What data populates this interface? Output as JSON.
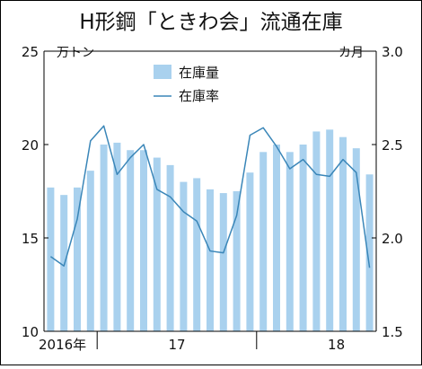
{
  "chart_data": {
    "type": "bar+line",
    "title": "H形鋼「ときわ会」流通在庫",
    "left_axis": {
      "unit": "万トン",
      "ylim": [
        10,
        25
      ],
      "ticks": [
        "10",
        "15",
        "20",
        "25"
      ]
    },
    "right_axis": {
      "unit": "カ月",
      "ylim": [
        1.5,
        3.0
      ],
      "ticks": [
        "1.5",
        "2.0",
        "2.5",
        "3.0"
      ]
    },
    "x_labels": [
      {
        "label": "2016年",
        "index": 0
      },
      {
        "label": "17",
        "index": 10
      },
      {
        "label": "18",
        "index": 22
      }
    ],
    "year_boundaries": [
      4,
      16
    ],
    "legend": [
      {
        "name": "在庫量",
        "kind": "bar",
        "color": "#a9d1ee"
      },
      {
        "name": "在庫率",
        "kind": "line",
        "color": "#3a86b8"
      }
    ],
    "series": [
      {
        "name": "在庫量",
        "axis": "left",
        "kind": "bar",
        "color": "#a9d1ee",
        "values": [
          17.7,
          17.3,
          17.7,
          18.6,
          20.0,
          20.1,
          19.7,
          19.7,
          19.3,
          18.9,
          18.0,
          18.2,
          17.6,
          17.4,
          17.5,
          18.5,
          19.6,
          20.0,
          19.6,
          20.0,
          20.7,
          20.8,
          20.4,
          19.8,
          18.4
        ]
      },
      {
        "name": "在庫率",
        "axis": "right",
        "kind": "line",
        "color": "#3a86b8",
        "values": [
          1.9,
          1.85,
          2.1,
          2.52,
          2.6,
          2.34,
          2.43,
          2.5,
          2.26,
          2.22,
          2.14,
          2.09,
          1.93,
          1.92,
          2.12,
          2.55,
          2.59,
          2.49,
          2.37,
          2.42,
          2.34,
          2.33,
          2.42,
          2.35,
          1.84
        ]
      }
    ]
  }
}
